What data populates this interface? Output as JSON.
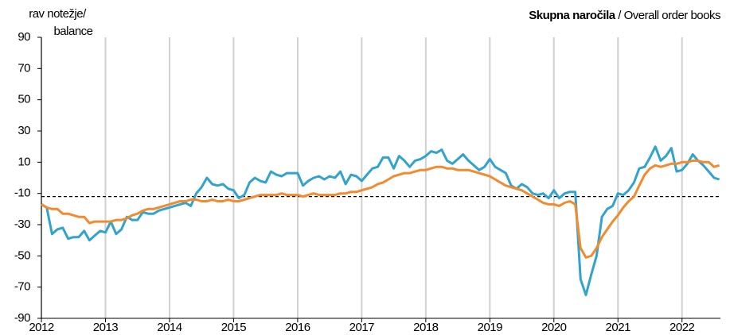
{
  "chart_data": {
    "type": "line",
    "title": "Skupna naročila",
    "subtitle": "/ Overall order books",
    "ylabel": [
      "rav notežje/",
      "balance"
    ],
    "x": [
      2012,
      2012.083,
      2012.167,
      2012.25,
      2012.333,
      2012.417,
      2012.5,
      2012.583,
      2012.667,
      2012.75,
      2012.833,
      2012.917,
      2013,
      2013.083,
      2013.167,
      2013.25,
      2013.333,
      2013.417,
      2013.5,
      2013.583,
      2013.667,
      2013.75,
      2013.833,
      2013.917,
      2014,
      2014.083,
      2014.167,
      2014.25,
      2014.333,
      2014.417,
      2014.5,
      2014.583,
      2014.667,
      2014.75,
      2014.833,
      2014.917,
      2015,
      2015.083,
      2015.167,
      2015.25,
      2015.333,
      2015.417,
      2015.5,
      2015.583,
      2015.667,
      2015.75,
      2015.833,
      2015.917,
      2016,
      2016.083,
      2016.167,
      2016.25,
      2016.333,
      2016.417,
      2016.5,
      2016.583,
      2016.667,
      2016.75,
      2016.833,
      2016.917,
      2017,
      2017.083,
      2017.167,
      2017.25,
      2017.333,
      2017.417,
      2017.5,
      2017.583,
      2017.667,
      2017.75,
      2017.833,
      2017.917,
      2018,
      2018.083,
      2018.167,
      2018.25,
      2018.333,
      2018.417,
      2018.5,
      2018.583,
      2018.667,
      2018.75,
      2018.833,
      2018.917,
      2019,
      2019.083,
      2019.167,
      2019.25,
      2019.333,
      2019.417,
      2019.5,
      2019.583,
      2019.667,
      2019.75,
      2019.833,
      2019.917,
      2020,
      2020.083,
      2020.167,
      2020.25,
      2020.333,
      2020.417,
      2020.5,
      2020.583,
      2020.667,
      2020.75,
      2020.833,
      2020.917,
      2021,
      2021.083,
      2021.167,
      2021.25,
      2021.333,
      2021.417,
      2021.5,
      2021.583,
      2021.667,
      2021.75,
      2021.833,
      2021.917,
      2022,
      2022.083,
      2022.167,
      2022.25,
      2022.333,
      2022.417,
      2022.5,
      2022.583
    ],
    "series": [
      {
        "color": "#31a3cc",
        "values": [
          -17,
          -19,
          -36,
          -33,
          -32,
          -39,
          -38,
          -38,
          -34,
          -40,
          -37,
          -34,
          -35,
          -28,
          -36,
          -33,
          -25,
          -27,
          -27,
          -22,
          -23,
          -23,
          -21,
          -20,
          -19,
          -18,
          -17,
          -16,
          -18,
          -10,
          -6,
          0,
          -4,
          -5,
          -4,
          -7,
          -8,
          -13,
          -11,
          -3,
          0,
          -2,
          -3,
          4,
          2,
          1,
          3,
          3,
          3,
          -5,
          -2,
          0,
          1,
          -1,
          1,
          0,
          4,
          -4,
          2,
          1,
          -2,
          2,
          6,
          7,
          13,
          13,
          6,
          14,
          11,
          7,
          11,
          12,
          14,
          17,
          16,
          18,
          11,
          9,
          12,
          15,
          11,
          8,
          5,
          7,
          12,
          7,
          5,
          3,
          -5,
          -7,
          -4,
          -6,
          -10,
          -11,
          -10,
          -13,
          -8,
          -13,
          -10,
          -9,
          -9,
          -65,
          -75,
          -62,
          -50,
          -25,
          -20,
          -18,
          -10,
          -11,
          -8,
          -3,
          6,
          7,
          13,
          20,
          11,
          14,
          19,
          4,
          5,
          9,
          15,
          11,
          8,
          4,
          0,
          -1
        ]
      },
      {
        "color": "#f28a2e",
        "values": [
          -17,
          -19,
          -20,
          -20,
          -23,
          -23,
          -24,
          -25,
          -25,
          -29,
          -28,
          -28,
          -28,
          -28,
          -27,
          -27,
          -26,
          -24,
          -23,
          -21,
          -20,
          -20,
          -19,
          -18,
          -17,
          -16,
          -15,
          -15,
          -14,
          -14,
          -15,
          -15,
          -14,
          -15,
          -15,
          -14,
          -15,
          -15,
          -14,
          -13,
          -12,
          -11,
          -11,
          -11,
          -11,
          -10,
          -11,
          -11,
          -11,
          -12,
          -11,
          -10,
          -11,
          -11,
          -11,
          -11,
          -10,
          -10,
          -9,
          -9,
          -8,
          -7,
          -6,
          -4,
          -3,
          -1,
          1,
          2,
          3,
          3,
          4,
          5,
          5,
          6,
          7,
          7,
          6,
          6,
          5,
          5,
          5,
          4,
          3,
          2,
          1,
          -1,
          -3,
          -5,
          -6,
          -7,
          -8,
          -10,
          -12,
          -14,
          -16,
          -17,
          -17,
          -18,
          -16,
          -15,
          -17,
          -45,
          -51,
          -50,
          -45,
          -38,
          -33,
          -28,
          -24,
          -19,
          -15,
          -12,
          -5,
          2,
          6,
          8,
          7,
          8,
          9,
          9,
          10,
          10,
          11,
          11,
          10,
          10,
          7,
          8
        ]
      }
    ],
    "reference_line": -12,
    "xlim": [
      2012,
      2022.6
    ],
    "xticks": [
      2012,
      2013,
      2014,
      2015,
      2016,
      2017,
      2018,
      2019,
      2020,
      2021,
      2022
    ],
    "ylim": [
      -90,
      90
    ],
    "yticks": [
      -90,
      -70,
      -50,
      -30,
      -10,
      10,
      30,
      50,
      70,
      90
    ],
    "grid": "x"
  }
}
